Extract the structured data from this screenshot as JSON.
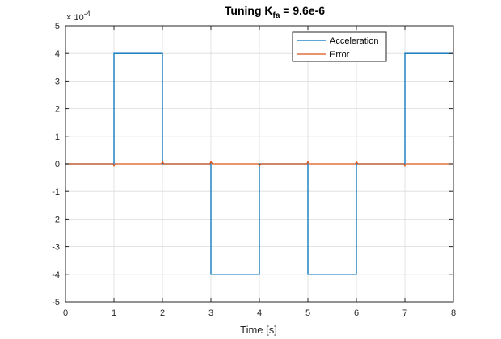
{
  "chart_data": {
    "type": "line",
    "title": {
      "prefix": "Tuning K",
      "subscript": "fa",
      "suffix": " = 9.6e-6"
    },
    "xlabel": "Time [s]",
    "ylabel": "",
    "y_exponent_label": {
      "base": "× 10",
      "power": "-4"
    },
    "xlim": [
      0,
      8
    ],
    "ylim": [
      -5,
      5
    ],
    "x_ticks": [
      "0",
      "1",
      "2",
      "3",
      "4",
      "5",
      "6",
      "7",
      "8"
    ],
    "y_ticks": [
      "-5",
      "-4",
      "-3",
      "-2",
      "-1",
      "0",
      "1",
      "2",
      "3",
      "4",
      "5"
    ],
    "y_scale_note": "y values shown in units of 1e-4",
    "grid": true,
    "legend_position": "top-right",
    "series": [
      {
        "name": "Acceleration",
        "color": "#0072BD",
        "x": [
          0,
          1,
          1,
          2,
          2,
          3,
          3,
          4,
          4,
          5,
          5,
          6,
          6,
          7,
          7,
          8
        ],
        "y": [
          0,
          0,
          4,
          4,
          0,
          0,
          -4,
          -4,
          0,
          0,
          -4,
          -4,
          0,
          0,
          4,
          4
        ]
      },
      {
        "name": "Error",
        "color": "#D95319",
        "x": [
          0,
          0.98,
          1.0,
          1.03,
          1.98,
          2.0,
          2.03,
          2.98,
          3.0,
          3.03,
          3.98,
          4.0,
          4.03,
          4.98,
          5.0,
          5.03,
          5.98,
          6.0,
          6.03,
          6.98,
          7.0,
          7.03,
          8
        ],
        "y": [
          0,
          0,
          -0.08,
          0,
          0,
          0.08,
          0,
          0,
          0.08,
          0,
          0,
          -0.08,
          0,
          0,
          0.08,
          0,
          0,
          0.08,
          0,
          0,
          -0.08,
          0,
          0
        ]
      }
    ]
  }
}
